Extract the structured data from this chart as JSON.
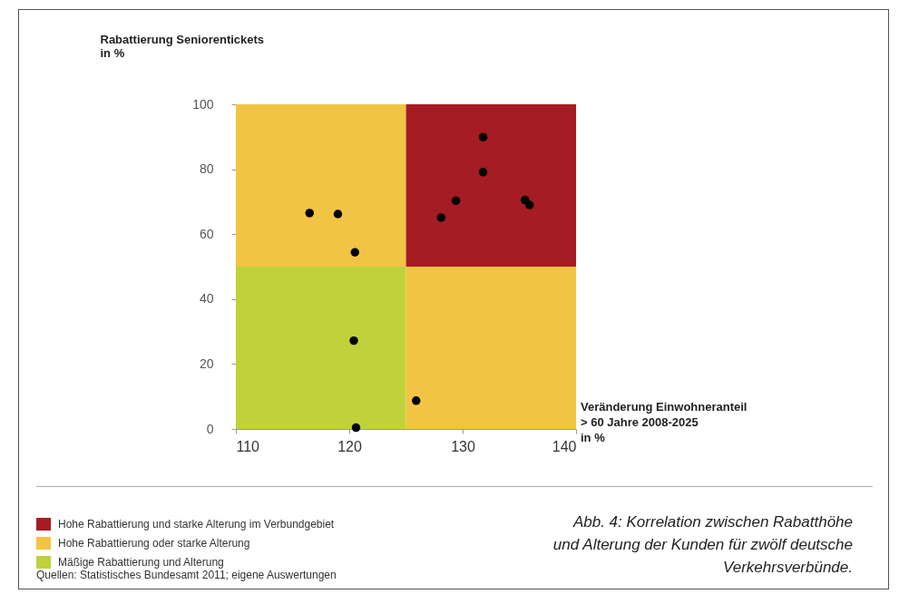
{
  "chart_data": {
    "type": "scatter",
    "ylabel": "Rabattierung Seniorentickets\nin %",
    "xlim": [
      110,
      140
    ],
    "xticks": [
      110,
      120,
      130,
      140
    ],
    "ylim": [
      0,
      100
    ],
    "yticks": [
      0,
      20,
      40,
      60,
      80,
      100
    ],
    "grid": false,
    "marker": "circle",
    "stacked": true,
    "series": [
      {
        "type": "bar",
        "x": [
          117.5,
          132.5
        ],
        "values": [
          50,
          50
        ],
        "colors": [
          "#bfd23c",
          "#f2c443"
        ]
      },
      {
        "type": "bar",
        "x": [
          117.5,
          132.5
        ],
        "values": [
          50,
          50
        ],
        "colors": [
          "#f2c443",
          "#a51c24"
        ]
      },
      {
        "color": "#000000",
        "x": [
          116.5,
          119.0,
          120.5,
          120.4,
          120.6,
          125.9,
          128.1,
          129.4,
          131.8,
          131.8,
          135.5,
          135.9
        ],
        "values": [
          66.5,
          66.2,
          54.4,
          27.2,
          0.4,
          8.7,
          65.1,
          70.3,
          89.9,
          79.1,
          70.5,
          69.0
        ]
      }
    ],
    "annotations": [
      "Veränderung Einwohneranteil\n> 60 Jahre 2008-2025\nin %",
      "Hohe Rabattierung und starke Alterung im Verbundgebiet",
      "Hohe Rabattierung oder starke Alterung",
      "Mäßige Rabattierung und Alterung",
      "Quellen: Statistisches Bundesamt 2011; eigene Auswertungen",
      "Abb. 4: Korrelation zwischen Rabatthöhe und Alterung der Kunden für zwölf deutsche Verkehrsverbünde."
    ]
  }
}
